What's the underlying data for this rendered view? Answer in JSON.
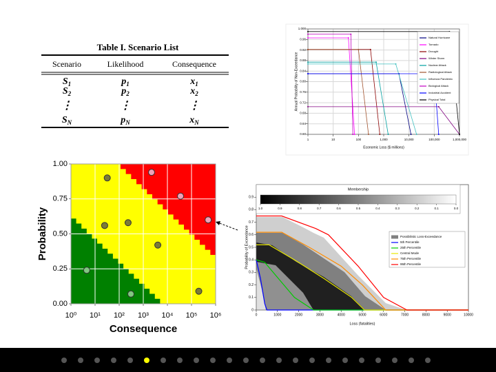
{
  "table": {
    "caption": "Table I.  Scenario List",
    "headers": [
      "Scenario",
      "Likelihood",
      "Consequence"
    ],
    "rows": [
      [
        {
          "base": "S",
          "sub": "1"
        },
        {
          "base": "p",
          "sub": "1"
        },
        {
          "base": "x",
          "sub": "1"
        }
      ],
      [
        {
          "base": "S",
          "sub": "2"
        },
        {
          "base": "p",
          "sub": "2"
        },
        {
          "base": "x",
          "sub": "2"
        }
      ],
      [
        {
          "base": "⋮",
          "sub": ""
        },
        {
          "base": "⋮",
          "sub": ""
        },
        {
          "base": "⋮",
          "sub": ""
        }
      ],
      [
        {
          "base": "S",
          "sub": "N"
        },
        {
          "base": "p",
          "sub": "N"
        },
        {
          "base": "x",
          "sub": "N"
        }
      ]
    ]
  },
  "chart_data": [
    {
      "type": "line",
      "xscale": "log",
      "xlabel": "Economic Loss ($ millions)",
      "ylabel": "Annual Probability of Non-Exceedance",
      "xlim": [
        1,
        1000000
      ],
      "xticks": [
        1,
        10,
        100,
        {
          "value": 1000,
          "label": "1,000"
        },
        {
          "value": 10000,
          "label": "10,000"
        },
        {
          "value": 100000,
          "label": "100,000"
        },
        {
          "value": 1000000,
          "label": "1,000,000"
        }
      ],
      "ylim": [
        0.6,
        1.0
      ],
      "yticks": [
        {
          "value": 0.6,
          "label": "0.60"
        },
        {
          "value": 0.64,
          "label": "0.64"
        },
        {
          "value": 0.68,
          "label": "0.68"
        },
        {
          "value": 0.72,
          "label": "0.72"
        },
        {
          "value": 0.76,
          "label": "0.76"
        },
        {
          "value": 0.8,
          "label": "0.80"
        },
        {
          "value": 0.84,
          "label": "0.84"
        },
        {
          "value": 0.88,
          "label": "0.88"
        },
        {
          "value": 0.92,
          "label": "0.92"
        },
        {
          "value": 0.96,
          "label": "0.96"
        },
        {
          "value": 1.0,
          "label": "1.000"
        }
      ],
      "grid": true,
      "legend": "upper right",
      "series": [
        {
          "name": "Natural Hurricane",
          "color": "#000080",
          "x": [
            1,
            4000,
            12000
          ],
          "values": [
            0.83,
            0.83,
            0.6
          ]
        },
        {
          "name": "Tornado",
          "color": "#ff00ff",
          "x": [
            1,
            40,
            70
          ],
          "values": [
            0.966,
            0.966,
            0.6
          ]
        },
        {
          "name": "Drought",
          "color": "#8b0000",
          "x": [
            1,
            300,
            700
          ],
          "values": [
            0.922,
            0.922,
            0.6
          ]
        },
        {
          "name": "Winter Storm",
          "color": "#800080",
          "x": [
            1,
            150000,
            1000000
          ],
          "values": [
            0.705,
            0.705,
            0.6
          ]
        },
        {
          "name": "Nuclear Attack",
          "color": "#00a0a0",
          "x": [
            1,
            500,
            1500
          ],
          "values": [
            0.874,
            0.874,
            0.6
          ]
        },
        {
          "name": "Radiological Attack",
          "color": "#a0522d",
          "x": [
            1,
            100,
            250
          ],
          "values": [
            0.922,
            0.922,
            0.6
          ]
        },
        {
          "name": "Influenza Pandemic",
          "color": "#40c0c0",
          "x": [
            1,
            3000,
            20000
          ],
          "values": [
            0.867,
            0.867,
            0.6
          ]
        },
        {
          "name": "Biological Attack",
          "color": "#c000c0",
          "x": [
            1,
            50,
            60
          ],
          "values": [
            0.98,
            0.98,
            0.6
          ]
        },
        {
          "name": "Industrial Accident",
          "color": "#0000ff",
          "x": [
            1,
            100000,
            150000
          ],
          "values": [
            0.83,
            0.83,
            0.6
          ]
        },
        {
          "name": "Physical Total",
          "color": "#000000",
          "x": [
            1,
            400000,
            1000000
          ],
          "values": [
            0.99,
            0.99,
            0.6
          ]
        }
      ]
    },
    {
      "type": "scatter",
      "xscale": "log",
      "xlabel": "Consequence",
      "ylabel": "Probability",
      "xlim": [
        1,
        1000000
      ],
      "xticks": [
        {
          "value": 1,
          "label": "10⁰"
        },
        {
          "value": 10,
          "label": "10¹"
        },
        {
          "value": 100,
          "label": "10²"
        },
        {
          "value": 1000,
          "label": "10³"
        },
        {
          "value": 10000,
          "label": "10⁴"
        },
        {
          "value": 100000,
          "label": "10⁵"
        },
        {
          "value": 1000000,
          "label": "10⁶"
        }
      ],
      "ylim": [
        0,
        1
      ],
      "yticks": [
        {
          "value": 0,
          "label": "0.00"
        },
        {
          "value": 0.25,
          "label": "0.25"
        },
        {
          "value": 0.5,
          "label": "0.50"
        },
        {
          "value": 0.75,
          "label": "0.75"
        },
        {
          "value": 1,
          "label": "1.00"
        }
      ],
      "grid": true,
      "x": [
        4.5,
        32,
        25,
        234,
        306,
        2200,
        4000,
        35000,
        200000,
        490000
      ],
      "values": [
        0.24,
        0.9,
        0.56,
        0.58,
        0.07,
        0.94,
        0.42,
        0.77,
        0.09,
        0.6
      ],
      "colors": [
        "#80c880",
        "#7a7a3a",
        "#7a7a3a",
        "#7a7a3a",
        "#80c880",
        "#f0a0b8",
        "#7a7a3a",
        "#f0a0b8",
        "#7a7a3a",
        "#f0a0b8"
      ]
    },
    {
      "type": "line",
      "xlabel": "Loss (fatalities)",
      "ylabel": "Probability of Exceedance",
      "xlim": [
        0,
        10000
      ],
      "xticks": [
        0,
        1000,
        2000,
        3000,
        4000,
        5000,
        6000,
        7000,
        8000,
        9000,
        10000
      ],
      "ylim": [
        0,
        1
      ],
      "yticks": [
        0,
        0.1,
        0.2,
        0.3,
        0.4,
        0.5,
        0.6,
        0.7,
        0.8,
        0.9
      ],
      "grid": false,
      "legend": "center right",
      "colorbar": {
        "title": "Membership",
        "colors": [
          "#000000",
          "#ffffff"
        ],
        "clim": [
          1,
          0
        ],
        "ticks": [
          {
            "value": 1,
            "label": "1.0"
          },
          0.9,
          0.8,
          0.7,
          0.6,
          0.5,
          0.4,
          0.3,
          0.2,
          0.1,
          {
            "value": 0,
            "label": "0.0"
          }
        ]
      },
      "series": [
        {
          "name": "Possibilistic Loss-Exceedance",
          "color": "#808080"
        },
        {
          "name": "5th Percentile",
          "color": "#0000ff",
          "x": [
            0,
            200,
            400,
            500,
            10000
          ],
          "values": [
            0.4,
            0.25,
            0.05,
            0,
            0
          ]
        },
        {
          "name": "25th Percentile",
          "color": "#00cc00",
          "x": [
            0,
            400,
            1200,
            1800,
            2700,
            10000
          ],
          "values": [
            0.4,
            0.38,
            0.22,
            0.1,
            0,
            0
          ]
        },
        {
          "name": "Central Mode",
          "color": "#e8e800",
          "x": [
            0,
            600,
            1800,
            3200,
            4500,
            5100,
            10000
          ],
          "values": [
            0.52,
            0.52,
            0.4,
            0.25,
            0.1,
            0,
            0
          ]
        },
        {
          "name": "75th Percentile",
          "color": "#ff8c00",
          "x": [
            0,
            1200,
            2500,
            4000,
            5000,
            6100,
            10000
          ],
          "values": [
            0.62,
            0.62,
            0.5,
            0.35,
            0.2,
            0,
            0
          ]
        },
        {
          "name": "95th Percentile",
          "color": "#ff0000",
          "x": [
            0,
            1200,
            2800,
            3400,
            4800,
            6000,
            7100,
            10000
          ],
          "values": [
            0.75,
            0.75,
            0.65,
            0.6,
            0.35,
            0.1,
            0,
            0
          ]
        }
      ]
    }
  ]
}
